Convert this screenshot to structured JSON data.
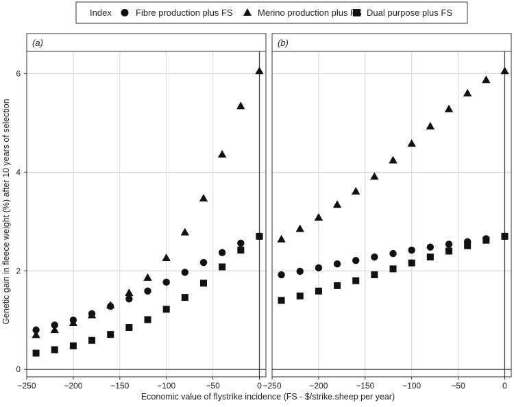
{
  "legend": {
    "title": "Index",
    "items": [
      {
        "label": "Fibre production plus FS",
        "shape": "circle"
      },
      {
        "label": "Merino production plus FS",
        "shape": "triangle"
      },
      {
        "label": "Dual purpose plus FS",
        "shape": "square"
      }
    ]
  },
  "chart_data": {
    "type": "scatter",
    "xlabel": "Economic value of flystrike incidence (FS - $/strike.sheep per year)",
    "ylabel": "Genetic gain in fleece weight (%) after 10 years of selection",
    "xlim": [
      -250,
      7
    ],
    "ylim": [
      -0.15,
      6.45
    ],
    "x_ticks": [
      -250,
      -200,
      -150,
      -100,
      -50,
      0
    ],
    "x_tick_labels": [
      "−250",
      "−200",
      "−150",
      "−100",
      "−50",
      "0"
    ],
    "y_ticks": [
      0,
      2,
      4,
      6
    ],
    "y_tick_labels": [
      "0",
      "2",
      "4",
      "6"
    ],
    "reference_lines": {
      "x": 0,
      "y": 0
    },
    "grid": true,
    "legend_position": "top",
    "panels": [
      {
        "label": "(a)",
        "x": [
          -240,
          -220,
          -200,
          -180,
          -160,
          -140,
          -120,
          -100,
          -80,
          -60,
          -40,
          -20,
          0
        ],
        "series": [
          {
            "name": "Fibre production plus FS",
            "marker": "circle",
            "values": [
              0.8,
              0.9,
              1.0,
              1.13,
              1.28,
              1.43,
              1.59,
              1.77,
              1.97,
              2.17,
              2.37,
              2.56,
              2.7
            ]
          },
          {
            "name": "Merino production plus FS",
            "marker": "triangle",
            "values": [
              0.7,
              0.8,
              0.94,
              1.1,
              1.3,
              1.55,
              1.86,
              2.26,
              2.78,
              3.47,
              4.36,
              5.34,
              6.05
            ]
          },
          {
            "name": "Dual purpose plus FS",
            "marker": "square",
            "values": [
              0.33,
              0.4,
              0.48,
              0.59,
              0.71,
              0.85,
              1.01,
              1.22,
              1.46,
              1.75,
              2.08,
              2.42,
              2.7
            ]
          }
        ]
      },
      {
        "label": "(b)",
        "x": [
          -240,
          -220,
          -200,
          -180,
          -160,
          -140,
          -120,
          -100,
          -80,
          -60,
          -40,
          -20,
          0
        ],
        "series": [
          {
            "name": "Fibre production plus FS",
            "marker": "circle",
            "values": [
              1.92,
              1.99,
              2.06,
              2.14,
              2.21,
              2.28,
              2.35,
              2.42,
              2.48,
              2.54,
              2.59,
              2.65,
              2.7
            ]
          },
          {
            "name": "Merino production plus FS",
            "marker": "triangle",
            "values": [
              2.64,
              2.85,
              3.08,
              3.34,
              3.61,
              3.91,
              4.24,
              4.58,
              4.93,
              5.28,
              5.6,
              5.87,
              6.05
            ]
          },
          {
            "name": "Dual purpose plus FS",
            "marker": "square",
            "values": [
              1.4,
              1.49,
              1.59,
              1.7,
              1.8,
              1.92,
              2.04,
              2.16,
              2.28,
              2.4,
              2.51,
              2.62,
              2.7
            ]
          }
        ]
      }
    ]
  }
}
